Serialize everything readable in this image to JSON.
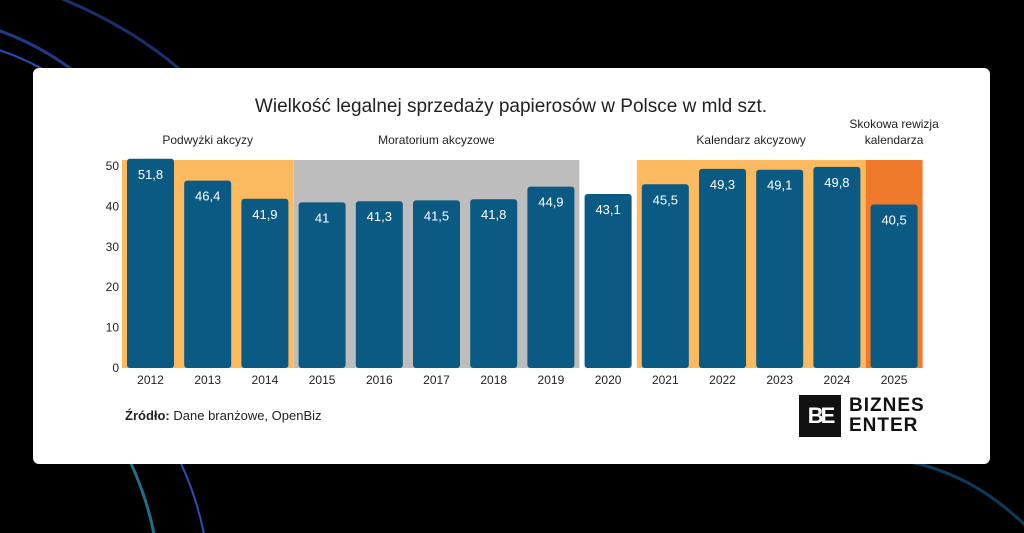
{
  "colors": {
    "bar": "#0a5a84",
    "highlight_orange": "#fbb960",
    "highlight_gray": "#bdbdbd",
    "highlight_red": "#f07a2b",
    "background": "#000000",
    "card": "#ffffff"
  },
  "chart_data": {
    "type": "bar",
    "title": "Wielkość legalnej sprzedaży papierosów w Polsce w mld szt.",
    "categories": [
      "2012",
      "2013",
      "2014",
      "2015",
      "2016",
      "2017",
      "2018",
      "2019",
      "2020",
      "2021",
      "2022",
      "2023",
      "2024",
      "2025"
    ],
    "values": [
      51.8,
      46.4,
      41.9,
      41,
      41.3,
      41.5,
      41.8,
      44.9,
      43.1,
      45.5,
      49.3,
      49.1,
      49.8,
      40.5
    ],
    "value_labels": [
      "51,8",
      "46,4",
      "41,9",
      "41",
      "41,3",
      "41,5",
      "41,8",
      "44,9",
      "43,1",
      "45,5",
      "49,3",
      "49,1",
      "49,8",
      "40,5"
    ],
    "ylim": [
      0,
      52
    ],
    "yticks": [
      "0",
      "10",
      "20",
      "30",
      "40",
      "50"
    ],
    "xlabel": "",
    "ylabel": "",
    "bands": [
      {
        "label_lines": [
          "Podwyżki akcyzy"
        ],
        "from": 0,
        "to": 2,
        "color": "orange"
      },
      {
        "label_lines": [
          "Moratorium akcyzowe"
        ],
        "from": 3,
        "to": 7,
        "color": "gray"
      },
      {
        "label_lines": [
          "Kalendarz akcyzowy"
        ],
        "from": 9,
        "to": 12,
        "color": "orange"
      },
      {
        "label_lines": [
          "Skokowa rewizja",
          "kalendarza"
        ],
        "from": 13,
        "to": 13,
        "color": "red"
      }
    ]
  },
  "footer": {
    "source_label": "Źródło:",
    "source_text": " Dane branżowe, OpenBiz"
  },
  "logo": {
    "mark": "BE",
    "line1": "BIZNES",
    "line2": "ENTER"
  }
}
